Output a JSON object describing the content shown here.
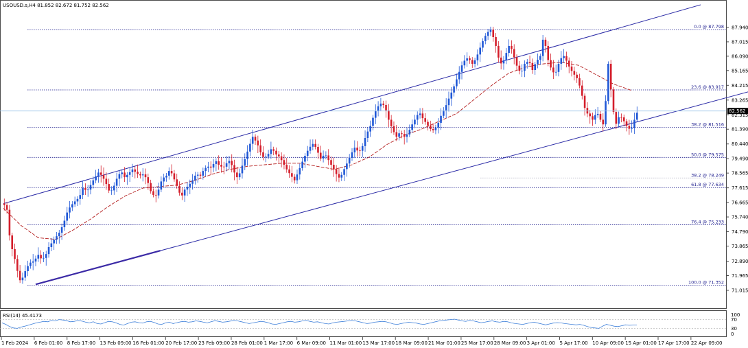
{
  "header": {
    "symbol_line": "USOUSD.s,H4  81.852 82.672 81.752 82.562"
  },
  "rsi_panel": {
    "label": "RSI(14) 45.4173",
    "levels": [
      "100",
      "70",
      "30",
      "0"
    ]
  },
  "price_tag": "82.562",
  "colors": {
    "bull": "#1f57d6",
    "bear": "#d41e2b",
    "channel": "#2a2aa6",
    "fib": "#1a1a8c",
    "ma": "#b31b1b",
    "rsi": "#3d7fd9",
    "tag_bg": "#000000"
  },
  "chart_data": {
    "type": "candlestick",
    "title": "",
    "xlabel": "",
    "ylabel": "",
    "ylim": [
      71.0,
      88.92
    ],
    "y_ticks": [
      "87.940",
      "87.015",
      "86.090",
      "85.165",
      "84.215",
      "83.265",
      "82.315",
      "81.390",
      "80.440",
      "79.490",
      "78.565",
      "77.615",
      "76.665",
      "75.740",
      "74.790",
      "73.865",
      "72.890",
      "71.965",
      "71.015"
    ],
    "x_ticks": [
      "1 Feb 2024",
      "6 Feb 01:00",
      "8 Feb 17:00",
      "13 Feb 09:00",
      "16 Feb 01:00",
      "20 Feb 17:00",
      "23 Feb 09:00",
      "28 Feb 01:00",
      "1 Mar 17:00",
      "6 Mar 09:00",
      "11 Mar 01:00",
      "13 Mar 17:00",
      "18 Mar 09:00",
      "21 Mar 01:00",
      "25 Mar 17:00",
      "28 Mar 09:00",
      "3 Apr 01:00",
      "5 Apr 17:00",
      "10 Apr 09:00",
      "15 Apr 01:00",
      "17 Apr 17:00",
      "22 Apr 09:00"
    ],
    "last_close": 82.562,
    "fibonacci_levels": [
      {
        "label": "0.0 @ 87.798",
        "price": 87.798
      },
      {
        "label": "23.6 @ 83.917",
        "price": 83.917
      },
      {
        "label": "38.2 @ 81.516",
        "price": 81.516
      },
      {
        "label": "50.0 @ 79.575",
        "price": 79.575
      },
      {
        "label": "38.2 @ 78.249",
        "price": 78.249,
        "faint": true
      },
      {
        "label": "61.8 @ 77.634",
        "price": 77.634
      },
      {
        "label": "76.4 @ 75.233",
        "price": 75.233
      },
      {
        "label": "100.0 @ 71.352",
        "price": 71.352
      }
    ],
    "price_path": [
      [
        0,
        76.6
      ],
      [
        4,
        76.2
      ],
      [
        8,
        74.0
      ],
      [
        11,
        73.5
      ],
      [
        14,
        72.8
      ],
      [
        17,
        72.0
      ],
      [
        20,
        71.5
      ],
      [
        23,
        72.0
      ],
      [
        27,
        72.5
      ],
      [
        31,
        72.8
      ],
      [
        35,
        72.9
      ],
      [
        40,
        73.3
      ],
      [
        44,
        73.0
      ],
      [
        48,
        73.2
      ],
      [
        52,
        73.8
      ],
      [
        57,
        74.2
      ],
      [
        61,
        74.5
      ],
      [
        65,
        74.8
      ],
      [
        70,
        75.5
      ],
      [
        74,
        76.2
      ],
      [
        78,
        76.5
      ],
      [
        83,
        76.8
      ],
      [
        87,
        77.0
      ],
      [
        91,
        77.6
      ],
      [
        96,
        77.4
      ],
      [
        100,
        77.8
      ],
      [
        104,
        78.2
      ],
      [
        109,
        78.6
      ],
      [
        113,
        78.4
      ],
      [
        117,
        78.0
      ],
      [
        122,
        77.3
      ],
      [
        126,
        77.6
      ],
      [
        130,
        78.2
      ],
      [
        135,
        78.7
      ],
      [
        139,
        78.3
      ],
      [
        143,
        78.5
      ],
      [
        148,
        78.8
      ],
      [
        152,
        78.6
      ],
      [
        156,
        78.4
      ],
      [
        161,
        78.5
      ],
      [
        165,
        78.1
      ],
      [
        169,
        77.4
      ],
      [
        174,
        77.0
      ],
      [
        178,
        77.5
      ],
      [
        182,
        78.2
      ],
      [
        187,
        78.4
      ],
      [
        191,
        78.8
      ],
      [
        195,
        78.3
      ],
      [
        200,
        77.6
      ],
      [
        204,
        77.0
      ],
      [
        208,
        77.5
      ],
      [
        213,
        77.8
      ],
      [
        217,
        78.1
      ],
      [
        221,
        78.5
      ],
      [
        226,
        78.4
      ],
      [
        230,
        78.8
      ],
      [
        234,
        79.0
      ],
      [
        239,
        78.9
      ],
      [
        243,
        79.4
      ],
      [
        247,
        79.1
      ],
      [
        252,
        78.9
      ],
      [
        256,
        79.2
      ],
      [
        260,
        79.4
      ],
      [
        265,
        78.6
      ],
      [
        269,
        78.2
      ],
      [
        273,
        78.9
      ],
      [
        278,
        79.6
      ],
      [
        282,
        80.3
      ],
      [
        286,
        80.9
      ],
      [
        291,
        80.5
      ],
      [
        295,
        79.9
      ],
      [
        299,
        79.5
      ],
      [
        304,
        79.8
      ],
      [
        308,
        80.2
      ],
      [
        312,
        79.8
      ],
      [
        317,
        79.6
      ],
      [
        321,
        79.2
      ],
      [
        325,
        78.8
      ],
      [
        330,
        78.4
      ],
      [
        334,
        78.1
      ],
      [
        338,
        78.6
      ],
      [
        343,
        79.3
      ],
      [
        347,
        79.8
      ],
      [
        351,
        80.2
      ],
      [
        356,
        80.5
      ],
      [
        360,
        80.0
      ],
      [
        364,
        79.5
      ],
      [
        369,
        79.8
      ],
      [
        373,
        79.4
      ],
      [
        377,
        79.0
      ],
      [
        382,
        78.5
      ],
      [
        386,
        78.2
      ],
      [
        390,
        78.7
      ],
      [
        395,
        79.3
      ],
      [
        399,
        79.8
      ],
      [
        403,
        80.2
      ],
      [
        408,
        79.9
      ],
      [
        412,
        80.3
      ],
      [
        416,
        81.0
      ],
      [
        421,
        81.6
      ],
      [
        425,
        82.3
      ],
      [
        429,
        82.8
      ],
      [
        434,
        83.1
      ],
      [
        438,
        82.8
      ],
      [
        442,
        82.0
      ],
      [
        447,
        81.3
      ],
      [
        451,
        80.9
      ],
      [
        455,
        81.2
      ],
      [
        460,
        80.9
      ],
      [
        464,
        81.1
      ],
      [
        468,
        81.6
      ],
      [
        473,
        82.1
      ],
      [
        477,
        82.5
      ],
      [
        481,
        82.1
      ],
      [
        486,
        81.7
      ],
      [
        490,
        81.4
      ],
      [
        494,
        81.3
      ],
      [
        499,
        81.8
      ],
      [
        503,
        82.4
      ],
      [
        507,
        82.8
      ],
      [
        512,
        83.5
      ],
      [
        516,
        84.0
      ],
      [
        520,
        84.6
      ],
      [
        525,
        85.4
      ],
      [
        529,
        85.8
      ],
      [
        533,
        86.0
      ],
      [
        538,
        85.6
      ],
      [
        542,
        85.9
      ],
      [
        546,
        86.5
      ],
      [
        551,
        87.2
      ],
      [
        555,
        87.6
      ],
      [
        559,
        87.8
      ],
      [
        564,
        87.0
      ],
      [
        568,
        86.0
      ],
      [
        572,
        85.5
      ],
      [
        577,
        86.3
      ],
      [
        581,
        86.9
      ],
      [
        585,
        86.2
      ],
      [
        590,
        85.3
      ],
      [
        594,
        85.0
      ],
      [
        598,
        85.6
      ],
      [
        603,
        85.8
      ],
      [
        607,
        85.2
      ],
      [
        611,
        85.7
      ],
      [
        616,
        86.1
      ],
      [
        620,
        87.5
      ],
      [
        624,
        86.0
      ],
      [
        629,
        85.2
      ],
      [
        633,
        84.9
      ],
      [
        637,
        85.6
      ],
      [
        642,
        86.2
      ],
      [
        646,
        85.8
      ],
      [
        650,
        85.3
      ],
      [
        655,
        84.9
      ],
      [
        659,
        84.6
      ],
      [
        663,
        83.8
      ],
      [
        668,
        82.5
      ],
      [
        672,
        82.3
      ],
      [
        676,
        82.0
      ],
      [
        681,
        82.5
      ],
      [
        685,
        82.0
      ],
      [
        689,
        81.6
      ],
      [
        694,
        85.6
      ],
      [
        698,
        83.4
      ],
      [
        702,
        81.6
      ],
      [
        707,
        82.3
      ],
      [
        711,
        82.0
      ],
      [
        715,
        81.6
      ],
      [
        720,
        81.3
      ],
      [
        724,
        82.0
      ],
      [
        728,
        82.6
      ]
    ],
    "moving_average": [
      [
        0,
        76.3
      ],
      [
        20,
        75.2
      ],
      [
        40,
        74.4
      ],
      [
        60,
        74.3
      ],
      [
        80,
        74.9
      ],
      [
        100,
        75.6
      ],
      [
        120,
        76.4
      ],
      [
        140,
        77.1
      ],
      [
        160,
        77.6
      ],
      [
        180,
        77.7
      ],
      [
        200,
        77.8
      ],
      [
        220,
        78.1
      ],
      [
        240,
        78.5
      ],
      [
        260,
        78.8
      ],
      [
        280,
        79.0
      ],
      [
        300,
        79.1
      ],
      [
        320,
        79.2
      ],
      [
        340,
        79.2
      ],
      [
        360,
        79.0
      ],
      [
        380,
        78.8
      ],
      [
        400,
        79.1
      ],
      [
        420,
        79.6
      ],
      [
        440,
        80.4
      ],
      [
        460,
        81.0
      ],
      [
        480,
        81.4
      ],
      [
        500,
        81.9
      ],
      [
        520,
        82.4
      ],
      [
        540,
        83.3
      ],
      [
        560,
        84.2
      ],
      [
        580,
        85.0
      ],
      [
        600,
        85.4
      ],
      [
        620,
        85.6
      ],
      [
        640,
        85.7
      ],
      [
        660,
        85.5
      ],
      [
        680,
        84.9
      ],
      [
        700,
        84.3
      ],
      [
        720,
        83.9
      ]
    ],
    "channel_lines": [
      {
        "from": [
          0,
          76.6
        ],
        "to": [
          800,
          89.4
        ]
      },
      {
        "from": [
          37,
          71.4
        ],
        "to": [
          1000,
          86.0
        ]
      }
    ],
    "rsi": {
      "name": "RSI(14)",
      "last": 45.4173,
      "ylim": [
        0,
        100
      ],
      "levels": [
        70,
        30
      ],
      "values": [
        55,
        48,
        38,
        32,
        30,
        36,
        40,
        45,
        50,
        55,
        58,
        62,
        60,
        66,
        64,
        70,
        68,
        65,
        60,
        62,
        66,
        63,
        58,
        55,
        60,
        52,
        50,
        56,
        62,
        60,
        55,
        48,
        45,
        52,
        58,
        60,
        56,
        54,
        60,
        62,
        57,
        50,
        48,
        55,
        58,
        52,
        56,
        60,
        62,
        58,
        60,
        64,
        62,
        58,
        55,
        60,
        65,
        62,
        58,
        60,
        63,
        66,
        64,
        60,
        56,
        52,
        55,
        58,
        62,
        60,
        56,
        50,
        48,
        52,
        56,
        60,
        62,
        58,
        60,
        64,
        66,
        62,
        58,
        60,
        56,
        52,
        50,
        55,
        58,
        60,
        62,
        64,
        66,
        64,
        60,
        56,
        52,
        54,
        58,
        60,
        62,
        60,
        55,
        50,
        48,
        52,
        55,
        58,
        56,
        54,
        50,
        48,
        52,
        56,
        60,
        64,
        66,
        68,
        70,
        72,
        68,
        64,
        62,
        66,
        64,
        60,
        56,
        58,
        62,
        64,
        60,
        58,
        62,
        60,
        55,
        52,
        50,
        48,
        52,
        56,
        58,
        54,
        50,
        46,
        50,
        54,
        56,
        55,
        52,
        50,
        48,
        46,
        48,
        44,
        38,
        34,
        32,
        30,
        40,
        48,
        44,
        40,
        38,
        42,
        46,
        44,
        45,
        45
      ]
    }
  }
}
